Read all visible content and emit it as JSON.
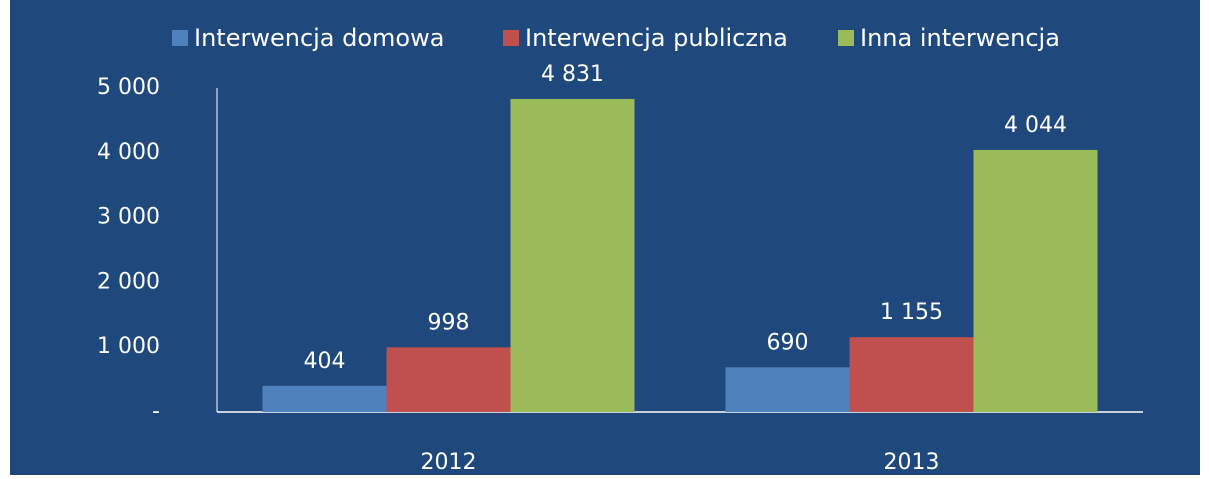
{
  "chart_data": {
    "type": "bar",
    "categories": [
      "2012",
      "2013"
    ],
    "series": [
      {
        "name": "Interwencja domowa",
        "color": "#4f81bd",
        "values": [
          404,
          690
        ],
        "value_labels": [
          "404",
          "690"
        ]
      },
      {
        "name": "Interwencja publiczna",
        "color": "#c0504d",
        "values": [
          998,
          1155
        ],
        "value_labels": [
          "998",
          "1 155"
        ]
      },
      {
        "name": "Inna interwencja",
        "color": "#9bbb59",
        "values": [
          4831,
          4044
        ],
        "value_labels": [
          "4 831",
          "4 044"
        ]
      }
    ],
    "ylim": [
      0,
      5000
    ],
    "yticks": [
      {
        "value": 0,
        "label": "-"
      },
      {
        "value": 1000,
        "label": "1 000"
      },
      {
        "value": 2000,
        "label": "2 000"
      },
      {
        "value": 3000,
        "label": "3 000"
      },
      {
        "value": 4000,
        "label": "4 000"
      },
      {
        "value": 5000,
        "label": "5 000"
      }
    ],
    "legend": "top",
    "grid": false,
    "background": "#1f487c"
  }
}
